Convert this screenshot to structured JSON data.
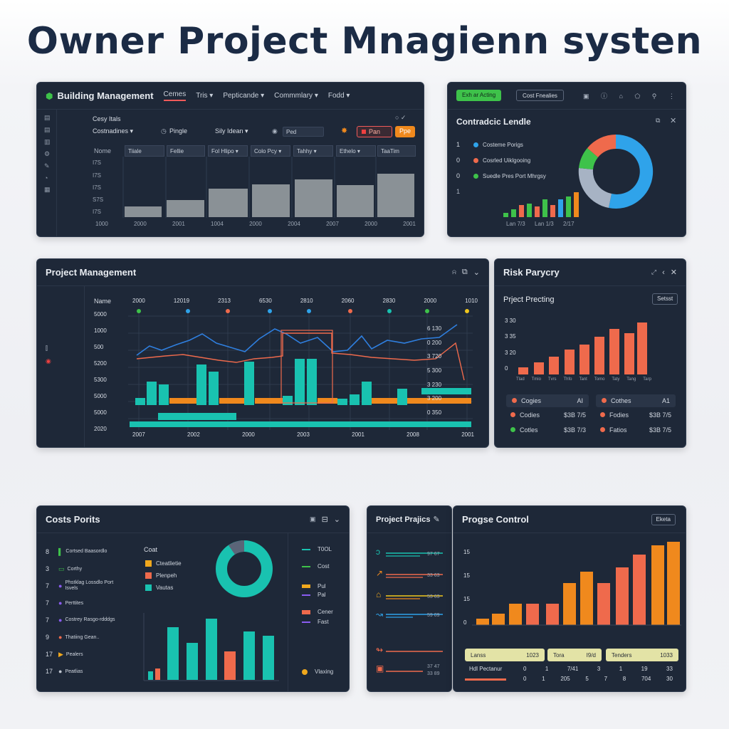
{
  "page_title": "Owner Project Mnagienn systen",
  "colors": {
    "teal": "#19c2b0",
    "orange": "#f0891d",
    "red": "#ef6a4c",
    "blue": "#2fa3ea",
    "green": "#3ec24a",
    "gray": "#9aa0a6",
    "panel": "#1e2838"
  },
  "building": {
    "title": "Building Management",
    "tabs": [
      "Cemes",
      "Tris ▾",
      "Pepticande ▾",
      "Commmlary ▾",
      "Fodd ▾"
    ],
    "section": "Cesy Itals",
    "filters": [
      "Costnadines ▾",
      "Pingle",
      "Sily Idean ▾",
      "Ped"
    ],
    "actions": {
      "a": "Pan",
      "b": "Ppe"
    },
    "columns": [
      "Nome",
      "Tiiale",
      "Fellie",
      "Fol Hlipo ▾",
      "Colo Pcy ▾",
      "Tahhy ▾",
      "Ethelo ▾",
      "TaaTim"
    ],
    "row_labels": [
      "I7S",
      "I7S",
      "I7S",
      "S7S",
      "I7S"
    ],
    "x_labels": [
      "1000",
      "2000",
      "2001",
      "1004",
      "2000",
      "2004",
      "2007",
      "2000",
      "2001"
    ],
    "icons": [
      "list-icon",
      "doc-icon",
      "folder-icon",
      "settings-icon",
      "pen-icon",
      "person-icon",
      "grid-icon"
    ]
  },
  "contractor": {
    "toolbar_btn": "Exh ar Acting",
    "toolbar_btn2": "Cost Fnealies",
    "title": "Contradcic Lendle",
    "legend": [
      {
        "num": "1",
        "label": "Costeme Porigs",
        "color": "#2fa3ea"
      },
      {
        "num": "0",
        "label": "Cosrled Uiklgooing",
        "color": "#ef6a4c"
      },
      {
        "num": "0",
        "label": "Suedle Pres Port Mhrgsy",
        "color": "#3ec24a"
      }
    ],
    "side_num": "1",
    "x_labels": [
      "Lan 7/3",
      "Lan 1/3",
      "2/17"
    ]
  },
  "pm": {
    "title": "Project Management",
    "col_label": "Name",
    "top_labels": [
      "2000",
      "12019",
      "2313",
      "6530",
      "2810",
      "2060",
      "2830",
      "2000",
      "1010"
    ],
    "y_labels": [
      "5000",
      "1000",
      "500",
      "5200",
      "5300",
      "5000",
      "5000",
      "2020"
    ],
    "right_labels": [
      "6 130",
      "0 200",
      "3 720",
      "5 300",
      "3 230",
      "3 200",
      "0 350"
    ],
    "x_labels": [
      "2007",
      "2002",
      "2000",
      "2003",
      "2001",
      "2008",
      "2001"
    ],
    "side_icons": [
      "chart-icon",
      "alert-icon"
    ]
  },
  "risk": {
    "title": "Risk Parycry",
    "subtitle": "Prject Precting",
    "btn": "Setsst",
    "y_labels": [
      "3 30",
      "3 35",
      "3 20",
      "0"
    ],
    "x_labels": [
      "Tlad",
      "Tmio",
      "Tvrs",
      "Thfo",
      "Tant",
      "Tomo",
      "Taty",
      "Tang",
      "Tarp"
    ],
    "cards": [
      {
        "label": "Cogies",
        "value": "AI",
        "color": "#ef6a4c"
      },
      {
        "label": "Cothes",
        "value": "A1",
        "color": "#ef6a4c"
      },
      {
        "label": "Codies",
        "value": "$3B 7/5",
        "color": "#ef6a4c"
      },
      {
        "label": "Fodies",
        "value": "$3B 7/5",
        "color": "#ef6a4c"
      },
      {
        "label": "Cotles",
        "value": "$3B 7/3",
        "color": "#3ec24a"
      },
      {
        "label": "Fatios",
        "value": "$3B 7/5",
        "color": "#ef6a4c"
      }
    ]
  },
  "costs": {
    "title": "Costs Porits",
    "list": [
      {
        "n": "8",
        "label": "Cortsed Baasordlo"
      },
      {
        "n": "3",
        "label": "Corthy"
      },
      {
        "n": "7",
        "label": "Phstklag Lossdlo Port Isvels"
      },
      {
        "n": "7",
        "label": "Perttites"
      },
      {
        "n": "7",
        "label": "Costrey Rasgo-rdddgs"
      },
      {
        "n": "9",
        "label": "Thatiing Gean.."
      },
      {
        "n": "17",
        "label": "Pealers"
      },
      {
        "n": "17",
        "label": "Peatlias"
      }
    ],
    "legend_title": "Coat",
    "legend": [
      {
        "label": "Cteatlietie",
        "color": "#f0a81d"
      },
      {
        "label": "Plenpeh",
        "color": "#ef6a4c"
      },
      {
        "label": "Vautas",
        "color": "#19c2b0"
      }
    ],
    "right": [
      {
        "label": "T0OL",
        "color": "#19c2b0"
      },
      {
        "label": "Cost",
        "color": "#3ec24a"
      },
      {
        "label": "Pul",
        "color": "#f0a81d"
      },
      {
        "label": "Pal",
        "color": "#8a5cf0"
      },
      {
        "label": "Cener",
        "color": "#ef6a4c"
      },
      {
        "label": "Fast",
        "color": "#8a5cf0"
      },
      {
        "label": "Vlaxing",
        "color": "#f0a81d"
      }
    ]
  },
  "profiles": {
    "title": "Project Prajics",
    "rows": [
      {
        "label": "",
        "value": "97 67"
      },
      {
        "label": "",
        "value": "33 63"
      },
      {
        "label": "",
        "value": "53 63"
      },
      {
        "label": "",
        "value": "59 09"
      },
      {
        "label": "",
        "value": "37 47"
      },
      {
        "label": "",
        "value": "33 89"
      }
    ]
  },
  "progress": {
    "title": "Progse Control",
    "btn": "Eketa",
    "y_labels": [
      "15",
      "15",
      "15",
      "0"
    ],
    "tags": [
      "Lanss",
      "1023",
      "Tora",
      "I9/d",
      "Tenders",
      "1033"
    ],
    "table_header": "Hdl Pectanur",
    "table_rows": [
      [
        "0",
        "1",
        "7/41",
        "3",
        "1",
        "19",
        "33"
      ],
      [
        "0",
        "1",
        "205",
        "5",
        "7",
        "8",
        "704",
        "30"
      ]
    ]
  }
}
